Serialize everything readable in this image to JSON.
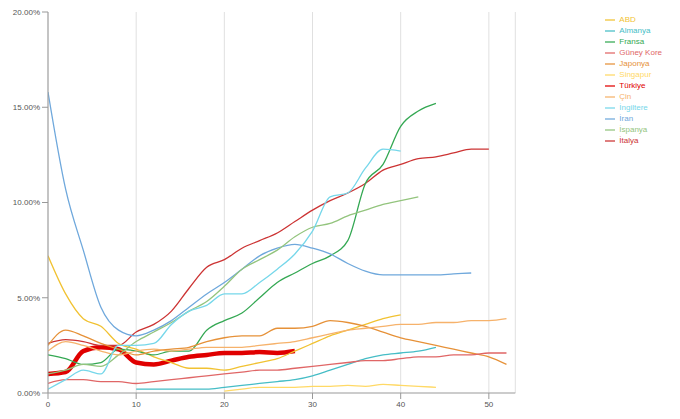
{
  "chart_data": {
    "type": "line",
    "x": [
      0,
      2,
      4,
      6,
      8,
      10,
      12,
      14,
      16,
      18,
      20,
      22,
      24,
      26,
      28,
      30,
      32,
      34,
      36,
      38,
      40,
      42,
      44,
      46,
      48,
      50,
      52
    ],
    "xlim": [
      0,
      53
    ],
    "xticks": [
      0,
      10,
      20,
      30,
      40,
      50
    ],
    "ylim": [
      0,
      20
    ],
    "yticks": [
      {
        "value": 0,
        "label": "0.00%"
      },
      {
        "value": 5,
        "label": "5.00%"
      },
      {
        "value": 10,
        "label": "10.00%"
      },
      {
        "value": 15,
        "label": "15.00%"
      },
      {
        "value": 20,
        "label": "20.00%"
      }
    ],
    "grid": true,
    "legend": "right",
    "series": [
      {
        "name": "Türkiye",
        "color": "#e00000",
        "values": [
          1.0,
          1.1,
          2.2,
          2.4,
          2.3,
          1.6,
          1.5,
          1.7,
          1.9,
          2.0,
          2.1,
          2.1,
          2.15,
          2.1,
          2.2,
          null,
          null,
          null,
          null,
          null,
          null,
          null,
          null,
          null,
          null,
          null,
          null
        ]
      },
      {
        "name": "İtalya",
        "color": "#cc3333",
        "values": [
          2.6,
          2.8,
          2.7,
          2.5,
          2.5,
          3.2,
          3.6,
          4.3,
          5.5,
          6.6,
          7.0,
          7.6,
          8.0,
          8.4,
          9.0,
          9.6,
          10.1,
          10.5,
          11.0,
          11.7,
          12.0,
          12.3,
          12.4,
          12.6,
          12.8,
          12.8,
          null
        ]
      },
      {
        "name": "ABD",
        "color": "#f1c232",
        "values": [
          7.2,
          5.2,
          3.9,
          3.5,
          2.6,
          2.3,
          1.9,
          1.6,
          1.3,
          1.3,
          1.2,
          1.4,
          1.6,
          1.8,
          2.2,
          2.6,
          3.0,
          3.3,
          3.6,
          3.9,
          4.1,
          null,
          null,
          null,
          null,
          null,
          null
        ]
      },
      {
        "name": "Fransa",
        "color": "#34a853",
        "values": [
          2.0,
          1.8,
          1.5,
          1.6,
          2.3,
          2.2,
          2.0,
          2.2,
          2.2,
          3.3,
          3.8,
          4.2,
          5.0,
          5.8,
          6.3,
          6.8,
          7.2,
          8.0,
          11.0,
          12.0,
          14.0,
          14.8,
          15.2,
          null,
          null,
          null,
          null
        ]
      },
      {
        "name": "Japonya",
        "color": "#e69138",
        "values": [
          2.5,
          3.3,
          3.0,
          2.6,
          2.3,
          2.0,
          2.2,
          2.3,
          2.4,
          2.7,
          2.9,
          3.0,
          3.0,
          3.4,
          3.4,
          3.5,
          3.8,
          3.7,
          3.5,
          3.2,
          2.9,
          2.7,
          2.5,
          2.3,
          2.1,
          1.9,
          1.5
        ]
      },
      {
        "name": "Almanya",
        "color": "#46bdc6",
        "values": [
          null,
          null,
          null,
          null,
          null,
          0.2,
          0.2,
          0.2,
          0.2,
          0.2,
          0.3,
          0.4,
          0.5,
          0.6,
          0.7,
          0.9,
          1.2,
          1.5,
          1.8,
          2.0,
          2.1,
          2.2,
          2.4,
          null,
          null,
          null,
          null
        ]
      },
      {
        "name": "İran",
        "color": "#6fa8dc",
        "values": [
          15.8,
          10.7,
          7.5,
          4.5,
          3.3,
          3.0,
          3.3,
          3.8,
          4.5,
          5.2,
          5.8,
          6.5,
          7.2,
          7.6,
          7.8,
          7.6,
          7.3,
          6.8,
          6.4,
          6.2,
          6.2,
          6.2,
          6.2,
          6.25,
          6.3,
          null,
          null
        ]
      },
      {
        "name": "Güney Kore",
        "color": "#e06666",
        "values": [
          0.5,
          0.7,
          0.7,
          0.6,
          0.6,
          0.5,
          0.6,
          0.7,
          0.8,
          0.9,
          1.0,
          1.1,
          1.2,
          1.2,
          1.3,
          1.4,
          1.5,
          1.6,
          1.7,
          1.7,
          1.8,
          1.9,
          1.9,
          2.0,
          2.0,
          2.1,
          2.1
        ]
      },
      {
        "name": "Singapur",
        "color": "#ffd966",
        "values": [
          null,
          null,
          null,
          null,
          null,
          null,
          null,
          null,
          null,
          null,
          0.1,
          0.2,
          0.3,
          0.3,
          0.3,
          0.35,
          0.35,
          0.4,
          0.35,
          0.45,
          0.4,
          0.35,
          0.3,
          null,
          null,
          null,
          null
        ]
      },
      {
        "name": "İspanya",
        "color": "#93c47d",
        "values": [
          1.0,
          1.2,
          1.5,
          1.4,
          2.0,
          2.7,
          3.2,
          3.7,
          4.3,
          4.8,
          5.6,
          6.5,
          7.0,
          7.5,
          8.2,
          8.7,
          8.9,
          9.3,
          9.6,
          9.9,
          10.1,
          10.3,
          null,
          null,
          null,
          null,
          null
        ]
      },
      {
        "name": "Çin",
        "color": "#f6b26b",
        "values": [
          2.2,
          2.7,
          2.5,
          2.2,
          2.0,
          2.2,
          2.3,
          2.2,
          2.3,
          2.4,
          2.4,
          2.4,
          2.5,
          2.6,
          2.7,
          2.9,
          3.1,
          3.3,
          3.4,
          3.5,
          3.6,
          3.6,
          3.7,
          3.7,
          3.8,
          3.8,
          3.9
        ]
      },
      {
        "name": "İngiltere",
        "color": "#76d7ea",
        "values": [
          0.2,
          0.7,
          1.2,
          1.0,
          2.5,
          2.5,
          2.6,
          3.6,
          4.3,
          4.6,
          5.2,
          5.2,
          5.8,
          6.5,
          7.3,
          8.5,
          10.3,
          10.5,
          11.8,
          12.8,
          12.7,
          null,
          null,
          null,
          null,
          null,
          null
        ]
      }
    ]
  }
}
